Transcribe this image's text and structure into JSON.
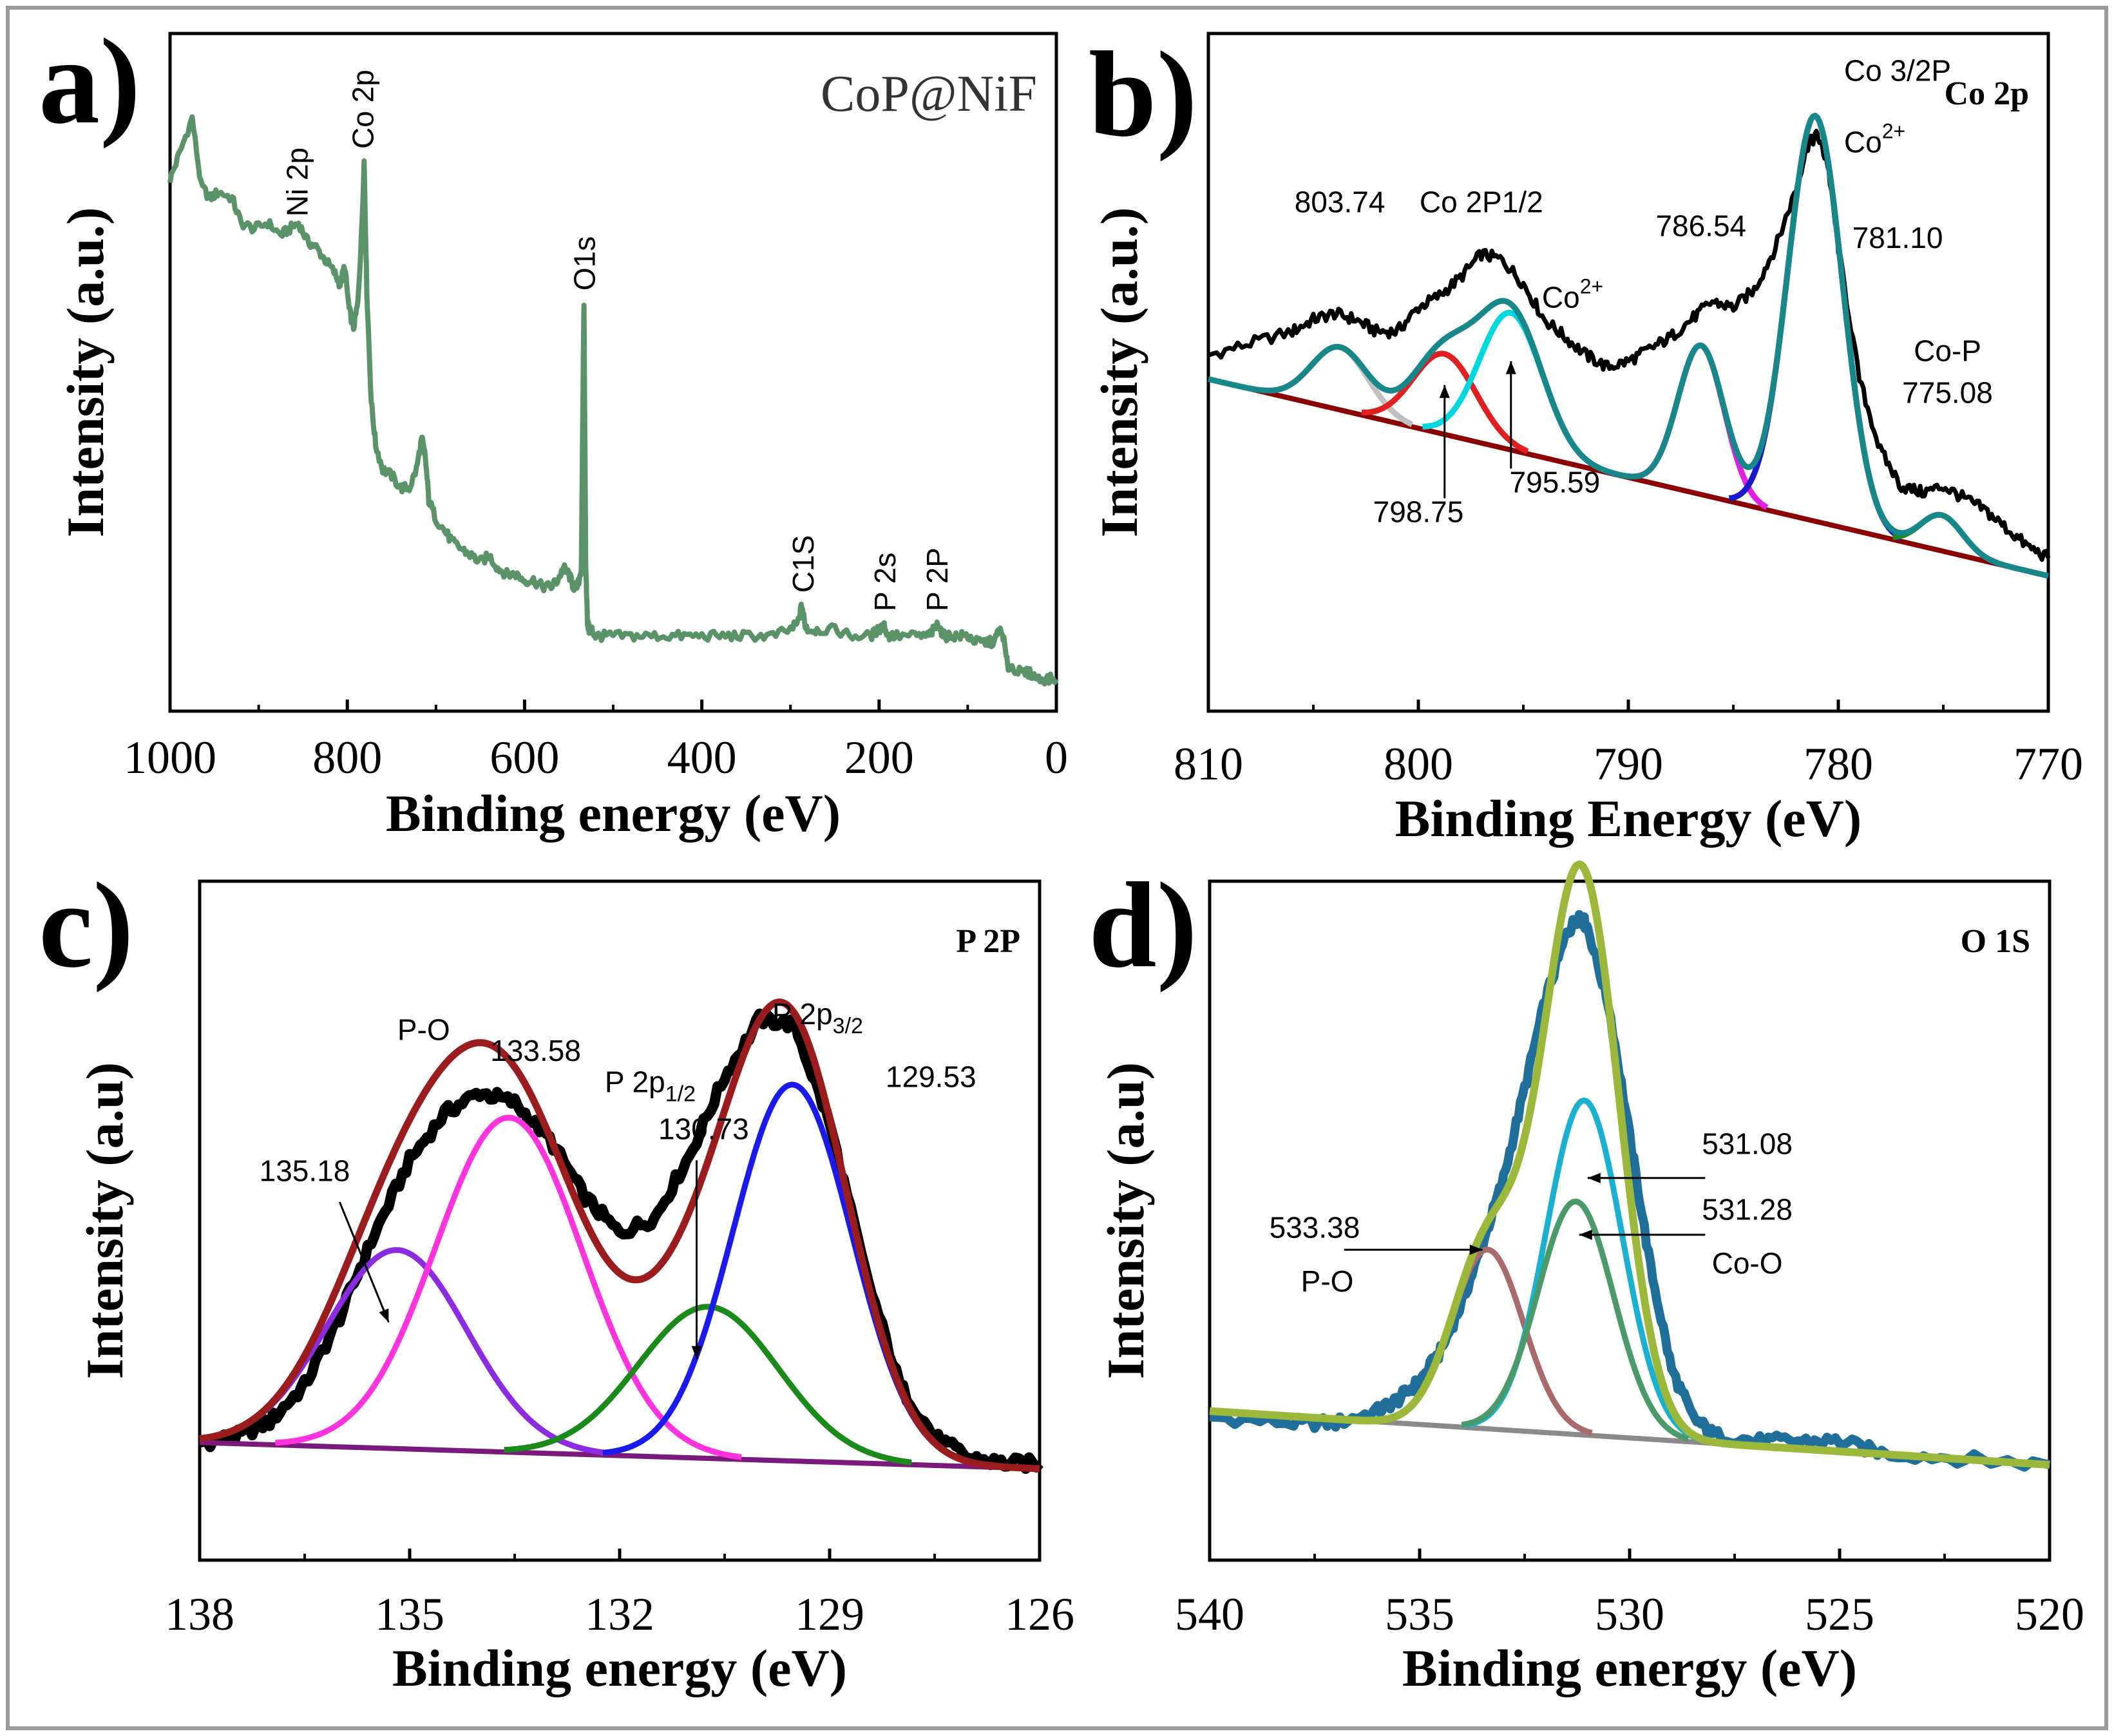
{
  "figure": {
    "colors": {
      "frame": "#9a9a9a",
      "a_survey": "#5a9367",
      "b_raw": "#000000",
      "b_envelope": "#17878a",
      "b_baseline": "#8b0000",
      "c_raw": "#000000",
      "c_envelope": "#9b1c1c",
      "c_baseline": "#7a1a7a",
      "d_raw": "#1f6f9a",
      "d_envelope": "#9bb83a",
      "d_baseline": "#8a8a8a"
    }
  },
  "chart_data": [
    {
      "id": "a",
      "type": "line",
      "panel_label": "a)",
      "title": "CoP@NiF",
      "xlabel": "Binding energy (eV)",
      "ylabel": "Intensity (a.u.)",
      "xlim": [
        1000,
        0
      ],
      "ylim": [
        0,
        1
      ],
      "x_reversed": true,
      "x_ticks": [
        1000,
        800,
        600,
        400,
        200,
        0
      ],
      "x_tick_labels": [
        "1000",
        "800",
        "600",
        "400",
        "200",
        "0"
      ],
      "y_ticks_shown": false,
      "series": [
        {
          "name": "survey",
          "color": "#5a9367",
          "x": [
            1000,
            990,
            975,
            965,
            955,
            945,
            930,
            920,
            905,
            890,
            875,
            865,
            855,
            845,
            835,
            825,
            815,
            808,
            803,
            798,
            793,
            788,
            784,
            781,
            778,
            773,
            768,
            760,
            750,
            740,
            730,
            722,
            716,
            712,
            708,
            700,
            690,
            680,
            670,
            660,
            650,
            640,
            630,
            620,
            610,
            600,
            590,
            580,
            570,
            563,
            556,
            550,
            545,
            540,
            536,
            533,
            531,
            529,
            527,
            524,
            520,
            510,
            500,
            480,
            460,
            440,
            420,
            400,
            380,
            360,
            340,
            320,
            300,
            292,
            287,
            284,
            280,
            270,
            250,
            230,
            210,
            200,
            195,
            190,
            180,
            160,
            145,
            138,
            133,
            128,
            120,
            110,
            100,
            90,
            80,
            70,
            65,
            60,
            55,
            50,
            40,
            30,
            20,
            10,
            0
          ],
          "y": [
            0.84,
            0.88,
            0.94,
            0.83,
            0.81,
            0.82,
            0.81,
            0.77,
            0.76,
            0.77,
            0.75,
            0.76,
            0.77,
            0.74,
            0.73,
            0.71,
            0.69,
            0.67,
            0.7,
            0.63,
            0.6,
            0.64,
            0.75,
            0.87,
            0.66,
            0.48,
            0.41,
            0.37,
            0.36,
            0.34,
            0.34,
            0.37,
            0.42,
            0.39,
            0.32,
            0.29,
            0.27,
            0.25,
            0.24,
            0.23,
            0.22,
            0.23,
            0.21,
            0.2,
            0.2,
            0.19,
            0.19,
            0.18,
            0.18,
            0.19,
            0.21,
            0.2,
            0.18,
            0.18,
            0.21,
            0.64,
            0.22,
            0.12,
            0.11,
            0.11,
            0.1,
            0.1,
            0.1,
            0.1,
            0.1,
            0.1,
            0.1,
            0.1,
            0.1,
            0.1,
            0.1,
            0.1,
            0.11,
            0.12,
            0.15,
            0.12,
            0.11,
            0.11,
            0.11,
            0.1,
            0.1,
            0.11,
            0.12,
            0.1,
            0.1,
            0.1,
            0.1,
            0.11,
            0.12,
            0.1,
            0.1,
            0.1,
            0.1,
            0.09,
            0.09,
            0.09,
            0.11,
            0.1,
            0.05,
            0.05,
            0.04,
            0.04,
            0.03,
            0.03,
            0.03
          ]
        }
      ],
      "annotations": [
        {
          "text": "Ni 2p",
          "x": 855,
          "y": 0.78,
          "rotation": -90
        },
        {
          "text": "Co 2p",
          "x": 781,
          "y": 0.89,
          "rotation": -90
        },
        {
          "text": "O1s",
          "x": 531,
          "y": 0.66,
          "rotation": -90
        },
        {
          "text": "C1S",
          "x": 284,
          "y": 0.17,
          "rotation": -90
        },
        {
          "text": "P 2s",
          "x": 192,
          "y": 0.14,
          "rotation": -90
        },
        {
          "text": "P 2P",
          "x": 133,
          "y": 0.14,
          "rotation": -90
        }
      ]
    },
    {
      "id": "b",
      "type": "line",
      "panel_label": "b)",
      "title": "Co 2p",
      "xlabel": "Binding Energy (eV)",
      "ylabel": "Intensity (a.u.)",
      "xlim": [
        810,
        770
      ],
      "ylim": [
        0,
        1
      ],
      "x_reversed": true,
      "x_ticks": [
        810,
        800,
        790,
        780,
        770
      ],
      "x_tick_labels": [
        "810",
        "800",
        "790",
        "780",
        "770"
      ],
      "y_ticks_shown": false,
      "baseline": {
        "x": [
          810,
          770
        ],
        "y": [
          0.5,
          0.17
        ]
      },
      "peaks": [
        {
          "name": "803.74",
          "center": 803.74,
          "height": 0.105,
          "sigma": 1.35,
          "color": "#c0c0c0"
        },
        {
          "name": "798.75",
          "center": 798.75,
          "height": 0.135,
          "sigma": 1.5,
          "color": "#e02020"
        },
        {
          "name": "795.59",
          "center": 795.59,
          "height": 0.23,
          "sigma": 1.5,
          "color": "#00d8e0"
        },
        {
          "name": "786.54",
          "center": 786.54,
          "height": 0.25,
          "sigma": 1.1,
          "color": "#e020e0"
        },
        {
          "name": "781.10",
          "center": 781.1,
          "height": 0.68,
          "sigma": 1.3,
          "color": "#1a1acd"
        },
        {
          "name": "775.08",
          "center": 775.08,
          "height": 0.06,
          "sigma": 1.0,
          "color": "#1a8a1a"
        }
      ],
      "raw_series": {
        "name": "experimental",
        "color": "#000000",
        "x": [
          810,
          808,
          806,
          805,
          804,
          803,
          802,
          801,
          800,
          799,
          798,
          797,
          796,
          795,
          794,
          793,
          792,
          791,
          790,
          789,
          788,
          787,
          786,
          785,
          784,
          783,
          782,
          781.5,
          781,
          780.5,
          780,
          779,
          778,
          777,
          776,
          775,
          774,
          773,
          772,
          771,
          770
        ],
        "y": [
          0.54,
          0.56,
          0.58,
          0.6,
          0.61,
          0.6,
          0.58,
          0.58,
          0.62,
          0.64,
          0.67,
          0.71,
          0.7,
          0.66,
          0.6,
          0.57,
          0.54,
          0.52,
          0.53,
          0.55,
          0.57,
          0.6,
          0.63,
          0.62,
          0.65,
          0.72,
          0.82,
          0.89,
          0.91,
          0.86,
          0.72,
          0.5,
          0.38,
          0.32,
          0.31,
          0.32,
          0.3,
          0.28,
          0.25,
          0.22,
          0.2
        ]
      },
      "annotations": [
        {
          "text": "803.74",
          "x": 803.74,
          "y": 0.78
        },
        {
          "text": "Co 2P1/2",
          "x": 797,
          "y": 0.78
        },
        {
          "text": "786.54",
          "x": 786.54,
          "y": 0.74
        },
        {
          "text": "Co 3/2P",
          "x": 778.5,
          "y": 1.0
        },
        {
          "text": "Co2+ (a)",
          "x": 778.5,
          "y": 0.88
        },
        {
          "text": "781.10",
          "x": 777.8,
          "y": 0.72
        },
        {
          "text": "Co2+ (b)",
          "x": 793.5,
          "y": 0.62
        },
        {
          "text": "Co-P",
          "x": 774.8,
          "y": 0.53
        },
        {
          "text": "775.08",
          "x": 774.8,
          "y": 0.46
        },
        {
          "text": "798.75",
          "x": 800,
          "y": 0.26
        },
        {
          "text": "795.59",
          "x": 793.5,
          "y": 0.31
        }
      ]
    },
    {
      "id": "c",
      "type": "line",
      "panel_label": "c)",
      "title": "P 2P",
      "xlabel": "Binding energy (eV)",
      "ylabel": "Intensity (a.u)",
      "xlim": [
        138,
        126
      ],
      "ylim": [
        0,
        1
      ],
      "x_reversed": true,
      "x_ticks": [
        138,
        135,
        132,
        129,
        126
      ],
      "x_tick_labels": [
        "138",
        "135",
        "132",
        "129",
        "126"
      ],
      "y_ticks_shown": false,
      "baseline": {
        "x": [
          138,
          126
        ],
        "y": [
          0.16,
          0.11
        ]
      },
      "peaks": [
        {
          "name": "135.18",
          "center": 135.18,
          "height": 0.38,
          "sigma": 1.0,
          "color": "#8b2be2"
        },
        {
          "name": "133.58",
          "center": 133.58,
          "height": 0.64,
          "sigma": 1.05,
          "color": "#ff33dd"
        },
        {
          "name": "130.73",
          "center": 130.73,
          "height": 0.29,
          "sigma": 1.0,
          "color": "#1a8a1a"
        },
        {
          "name": "129.53",
          "center": 129.53,
          "height": 0.72,
          "sigma": 0.85,
          "color": "#1a1aee"
        }
      ],
      "raw_series": {
        "name": "experimental",
        "color": "#000000",
        "x": [
          138,
          137.5,
          137,
          136.5,
          136,
          135.5,
          135,
          134.5,
          134,
          133.5,
          133,
          132.5,
          132,
          131.5,
          131,
          130.5,
          130,
          129.5,
          129,
          128.5,
          128,
          127.5,
          127,
          126.5,
          126
        ],
        "y": [
          0.16,
          0.17,
          0.2,
          0.27,
          0.4,
          0.56,
          0.7,
          0.79,
          0.83,
          0.81,
          0.74,
          0.63,
          0.56,
          0.59,
          0.71,
          0.86,
          0.97,
          0.96,
          0.77,
          0.49,
          0.27,
          0.17,
          0.13,
          0.12,
          0.12
        ]
      },
      "annotations": [
        {
          "text": "P-O",
          "x": 134.8,
          "y": 0.93
        },
        {
          "text": "133.58",
          "x": 133.2,
          "y": 0.89
        },
        {
          "text": "P 2p1/2",
          "x": 131.2,
          "y": 0.83
        },
        {
          "text": "130.73",
          "x": 130.8,
          "y": 0.74
        },
        {
          "text": "P 2p3/2",
          "x": 128.9,
          "y": 0.96
        },
        {
          "text": "129.53",
          "x": 128.2,
          "y": 0.84
        },
        {
          "text": "135.18",
          "x": 136.5,
          "y": 0.66
        }
      ]
    },
    {
      "id": "d",
      "type": "line",
      "panel_label": "d)",
      "title": "O 1S",
      "xlabel": "Binding energy (eV)",
      "ylabel": "Intensity (a.u)",
      "xlim": [
        540,
        520
      ],
      "ylim": [
        0,
        1
      ],
      "x_reversed": true,
      "x_ticks": [
        540,
        535,
        530,
        525,
        520
      ],
      "x_tick_labels": [
        "540",
        "535",
        "530",
        "525",
        "520"
      ],
      "y_ticks_shown": false,
      "baseline": {
        "x": [
          540,
          520
        ],
        "y": [
          0.17,
          0.08
        ]
      },
      "peaks": [
        {
          "name": "533.38",
          "center": 533.38,
          "height": 0.3,
          "sigma": 0.85,
          "color": "#a86a6a"
        },
        {
          "name": "531.08",
          "center": 531.08,
          "height": 0.56,
          "sigma": 0.9,
          "color": "#1ab0d0"
        },
        {
          "name": "531.28",
          "center": 531.28,
          "height": 0.39,
          "sigma": 0.9,
          "color": "#4a9a6a"
        }
      ],
      "raw_series": {
        "name": "experimental",
        "color": "#1f6f9a",
        "x": [
          540,
          538,
          537,
          536,
          535.5,
          535,
          534.5,
          534,
          533.5,
          533,
          532.5,
          532,
          531.5,
          531.2,
          531,
          530.5,
          530,
          529.5,
          529,
          528.5,
          528,
          527,
          526,
          525,
          524,
          522,
          520
        ],
        "y": [
          0.16,
          0.15,
          0.15,
          0.17,
          0.19,
          0.22,
          0.27,
          0.35,
          0.45,
          0.56,
          0.71,
          0.86,
          0.97,
          1.0,
          0.98,
          0.85,
          0.63,
          0.41,
          0.24,
          0.16,
          0.13,
          0.12,
          0.12,
          0.12,
          0.1,
          0.09,
          0.08
        ]
      },
      "annotations": [
        {
          "text": "531.08",
          "x": 527.2,
          "y": 0.6
        },
        {
          "text": "531.28",
          "x": 527.2,
          "y": 0.49
        },
        {
          "text": "Co-O",
          "x": 527.2,
          "y": 0.4
        },
        {
          "text": "533.38",
          "x": 537.5,
          "y": 0.46
        },
        {
          "text": "P-O",
          "x": 537.2,
          "y": 0.37
        }
      ]
    }
  ]
}
